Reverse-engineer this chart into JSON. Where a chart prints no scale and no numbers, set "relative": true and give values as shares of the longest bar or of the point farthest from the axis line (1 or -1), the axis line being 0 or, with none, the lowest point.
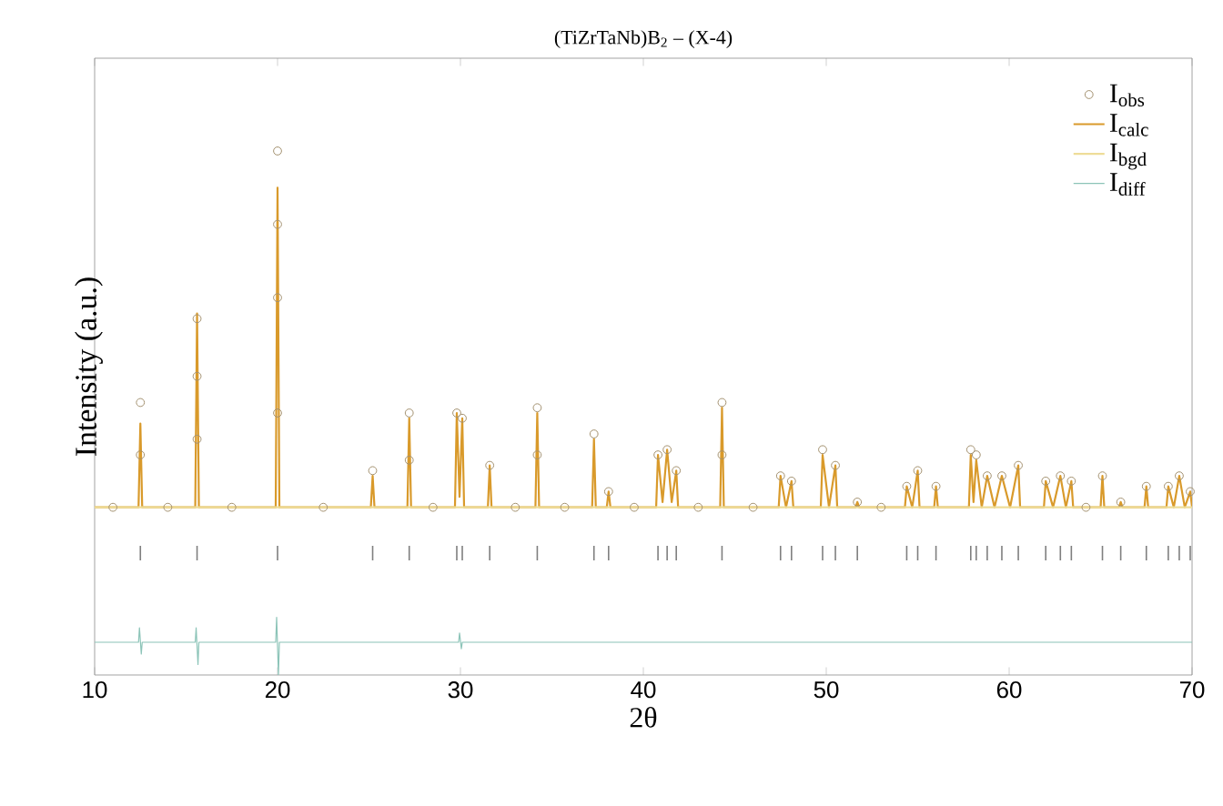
{
  "chart_data": [
    {
      "type": "line",
      "title": "(TiZrTaNb)B$_{2}$ – (X-4)",
      "xlabel": "2θ",
      "ylabel": "Intensity (a.u.)",
      "relative": true,
      "xlim": [
        10,
        70
      ],
      "xticks": [
        10,
        20,
        30,
        40,
        50,
        60,
        70
      ],
      "grid": false,
      "legend": "top right",
      "tick_labels": "x",
      "series": [
        {
          "name": "I$_{obs}$",
          "type": "scatter",
          "marker": "circle",
          "color": "#a3916f",
          "x": [
            11,
            12.5,
            12.5,
            14,
            15.6,
            15.6,
            15.6,
            17.5,
            20.0,
            20.0,
            20.0,
            20.0,
            22.5,
            25.2,
            27.2,
            27.2,
            28.5,
            29.8,
            30.1,
            31.6,
            33,
            34.2,
            34.2,
            35.7,
            37.3,
            38.1,
            39.5,
            40.8,
            41.3,
            41.8,
            43,
            44.3,
            44.3,
            46,
            47.5,
            48.1,
            49.8,
            50.5,
            51.7,
            53,
            54.4,
            55.0,
            56.0,
            57.9,
            58.2,
            58.8,
            59.6,
            60.5,
            62.0,
            62.8,
            63.4,
            64.2,
            65.1,
            66.1,
            67.5,
            68.7,
            69.3,
            69.9
          ],
          "values": [
            0.32,
            0.52,
            0.42,
            0.32,
            0.68,
            0.57,
            0.45,
            0.32,
            1.0,
            0.86,
            0.72,
            0.5,
            0.32,
            0.39,
            0.5,
            0.41,
            0.32,
            0.5,
            0.49,
            0.4,
            0.32,
            0.51,
            0.42,
            0.32,
            0.46,
            0.35,
            0.32,
            0.42,
            0.43,
            0.39,
            0.32,
            0.52,
            0.42,
            0.32,
            0.38,
            0.37,
            0.43,
            0.4,
            0.33,
            0.32,
            0.36,
            0.39,
            0.36,
            0.43,
            0.42,
            0.38,
            0.38,
            0.4,
            0.37,
            0.38,
            0.37,
            0.32,
            0.38,
            0.33,
            0.36,
            0.36,
            0.38,
            0.35
          ]
        },
        {
          "name": "I$_{calc}$",
          "color": "#d99a2b",
          "x": [
            10,
            12.4,
            12.5,
            12.6,
            15.5,
            15.6,
            15.7,
            19.9,
            20.0,
            20.1,
            25.1,
            25.2,
            25.3,
            27.1,
            27.2,
            27.3,
            29.7,
            29.8,
            29.95,
            30.1,
            30.2,
            31.5,
            31.6,
            31.7,
            34.1,
            34.2,
            34.3,
            37.2,
            37.3,
            37.4,
            38.0,
            38.1,
            38.2,
            40.7,
            40.8,
            41.05,
            41.3,
            41.55,
            41.8,
            41.9,
            44.2,
            44.3,
            44.4,
            47.4,
            47.5,
            47.8,
            48.1,
            48.2,
            49.7,
            49.8,
            50.15,
            50.5,
            50.6,
            51.6,
            51.7,
            51.8,
            54.3,
            54.4,
            54.7,
            55.0,
            55.1,
            55.9,
            56.0,
            56.1,
            57.8,
            57.9,
            58.05,
            58.2,
            58.5,
            58.8,
            59.2,
            59.6,
            60.05,
            60.5,
            60.6,
            61.9,
            62.0,
            62.4,
            62.8,
            63.1,
            63.4,
            63.5,
            65.0,
            65.1,
            65.2,
            66.0,
            66.1,
            66.2,
            67.4,
            67.5,
            67.6,
            68.6,
            68.7,
            69.0,
            69.3,
            69.6,
            69.9,
            70
          ],
          "values": [
            0.32,
            0.32,
            0.48,
            0.32,
            0.32,
            0.69,
            0.32,
            0.32,
            0.93,
            0.32,
            0.32,
            0.38,
            0.32,
            0.32,
            0.49,
            0.32,
            0.32,
            0.5,
            0.34,
            0.49,
            0.32,
            0.32,
            0.4,
            0.32,
            0.32,
            0.5,
            0.32,
            0.32,
            0.45,
            0.32,
            0.32,
            0.35,
            0.32,
            0.32,
            0.42,
            0.33,
            0.43,
            0.33,
            0.39,
            0.32,
            0.32,
            0.51,
            0.32,
            0.32,
            0.38,
            0.32,
            0.37,
            0.32,
            0.32,
            0.42,
            0.32,
            0.4,
            0.32,
            0.32,
            0.33,
            0.32,
            0.32,
            0.36,
            0.32,
            0.39,
            0.32,
            0.32,
            0.36,
            0.32,
            0.32,
            0.42,
            0.33,
            0.41,
            0.32,
            0.38,
            0.32,
            0.38,
            0.32,
            0.4,
            0.32,
            0.32,
            0.37,
            0.32,
            0.38,
            0.32,
            0.37,
            0.32,
            0.32,
            0.38,
            0.32,
            0.32,
            0.33,
            0.32,
            0.32,
            0.36,
            0.32,
            0.32,
            0.36,
            0.32,
            0.38,
            0.32,
            0.35,
            0.32
          ]
        },
        {
          "name": "I$_{bgd}$",
          "color": "#eedd99",
          "x": [
            10,
            70
          ],
          "values": [
            0.32,
            0.32
          ]
        },
        {
          "name": "I$_{diff}$",
          "color": "#8cc4b8",
          "x": [
            10,
            12.4,
            12.45,
            12.55,
            12.6,
            15.5,
            15.55,
            15.65,
            15.7,
            19.9,
            19.95,
            20.05,
            20.1,
            29.9,
            29.95,
            30.05,
            30.1,
            70
          ],
          "values": [
            0.0625,
            0.0625,
            0.09,
            0.04,
            0.0625,
            0.0625,
            0.09,
            0.02,
            0.0625,
            0.0625,
            0.11,
            0.0,
            0.0625,
            0.0625,
            0.08,
            0.05,
            0.0625,
            0.0625
          ]
        }
      ]
    },
    {
      "type": "bar",
      "relative": true,
      "xlim": [
        10,
        70
      ],
      "tick_labels": false,
      "color": "#7f7f7f",
      "x": [
        12.5,
        15.6,
        20.0,
        25.2,
        27.2,
        29.8,
        30.1,
        31.6,
        34.2,
        37.3,
        38.1,
        40.8,
        41.3,
        41.8,
        44.3,
        47.5,
        48.1,
        49.8,
        50.5,
        51.7,
        54.4,
        55.0,
        56.0,
        57.9,
        58.2,
        58.8,
        59.6,
        60.5,
        62.0,
        62.8,
        63.4,
        65.1,
        66.1,
        67.5,
        68.7,
        69.3,
        69.9
      ],
      "values": [
        1,
        1,
        1,
        1,
        1,
        1,
        1,
        1,
        1,
        1,
        1,
        1,
        1,
        1,
        1,
        1,
        1,
        1,
        1,
        1,
        1,
        1,
        1,
        1,
        1,
        1,
        1,
        1,
        1,
        1,
        1,
        1,
        1,
        1,
        1,
        1,
        1
      ]
    }
  ]
}
